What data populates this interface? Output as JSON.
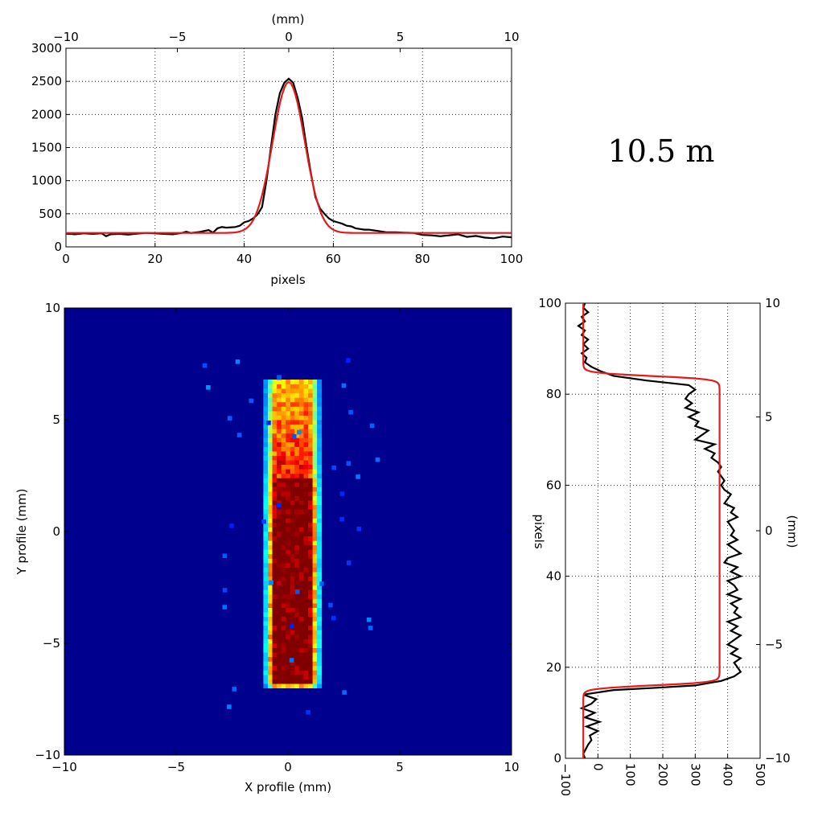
{
  "title_text": "10.5 m",
  "chart_data": [
    {
      "name": "x-profile",
      "type": "line",
      "xlabel": "pixels",
      "xlim": [
        0,
        100
      ],
      "ylim": [
        0,
        3000
      ],
      "xticks": [
        0,
        20,
        40,
        60,
        80,
        100
      ],
      "yticks": [
        0,
        500,
        1000,
        1500,
        2000,
        2500,
        3000
      ],
      "top_axis": {
        "label": "(mm)",
        "lim": [
          -10,
          10
        ],
        "ticks": [
          -10,
          -5,
          0,
          5,
          10
        ],
        "tick_labels": [
          "−10",
          "−5",
          "0",
          "5",
          "10"
        ]
      },
      "grid": true,
      "series": [
        {
          "name": "data",
          "color": "#000000",
          "points": [
            [
              0,
              200
            ],
            [
              2,
              190
            ],
            [
              4,
              205
            ],
            [
              6,
              195
            ],
            [
              8,
              205
            ],
            [
              9,
              160
            ],
            [
              10,
              190
            ],
            [
              12,
              195
            ],
            [
              14,
              185
            ],
            [
              16,
              200
            ],
            [
              18,
              210
            ],
            [
              20,
              205
            ],
            [
              22,
              195
            ],
            [
              24,
              190
            ],
            [
              26,
              210
            ],
            [
              27,
              230
            ],
            [
              28,
              210
            ],
            [
              30,
              225
            ],
            [
              32,
              255
            ],
            [
              33,
              215
            ],
            [
              34,
              280
            ],
            [
              35,
              300
            ],
            [
              36,
              290
            ],
            [
              38,
              300
            ],
            [
              39,
              320
            ],
            [
              40,
              370
            ],
            [
              41,
              390
            ],
            [
              42,
              430
            ],
            [
              43,
              490
            ],
            [
              44,
              600
            ],
            [
              45,
              1000
            ],
            [
              46,
              1500
            ],
            [
              47,
              2000
            ],
            [
              48,
              2320
            ],
            [
              49,
              2480
            ],
            [
              50,
              2540
            ],
            [
              51,
              2480
            ],
            [
              52,
              2250
            ],
            [
              53,
              1950
            ],
            [
              54,
              1500
            ],
            [
              55,
              1100
            ],
            [
              56,
              750
            ],
            [
              57,
              580
            ],
            [
              58,
              500
            ],
            [
              59,
              430
            ],
            [
              60,
              390
            ],
            [
              61,
              370
            ],
            [
              62,
              350
            ],
            [
              63,
              320
            ],
            [
              64,
              310
            ],
            [
              65,
              280
            ],
            [
              66,
              270
            ],
            [
              67,
              260
            ],
            [
              68,
              260
            ],
            [
              70,
              240
            ],
            [
              72,
              220
            ],
            [
              74,
              220
            ],
            [
              76,
              215
            ],
            [
              78,
              210
            ],
            [
              80,
              180
            ],
            [
              82,
              175
            ],
            [
              84,
              160
            ],
            [
              86,
              175
            ],
            [
              88,
              190
            ],
            [
              90,
              150
            ],
            [
              92,
              165
            ],
            [
              94,
              140
            ],
            [
              96,
              130
            ],
            [
              98,
              155
            ],
            [
              100,
              145
            ]
          ]
        },
        {
          "name": "fit",
          "color": "#e41a1c",
          "points": "gaussian",
          "baseline": 210,
          "amplitude": 2280,
          "center": 50,
          "sigma": 3.6
        }
      ]
    },
    {
      "name": "beam-image",
      "type": "heatmap",
      "xlabel": "X profile (mm)",
      "ylabel": "Y profile (mm)",
      "xlim": [
        -10,
        10
      ],
      "ylim": [
        -10,
        10
      ],
      "xticks": [
        -10,
        -5,
        0,
        5,
        10
      ],
      "yticks": [
        -10,
        -5,
        0,
        5,
        10
      ],
      "tick_labels": [
        "−10",
        "−5",
        "0",
        "5",
        "10"
      ],
      "colormap": "jet",
      "background": "#00008f",
      "beam": {
        "x_range_mm": [
          -1.1,
          1.4
        ],
        "y_range_mm": [
          -6.8,
          6.7
        ],
        "core_x_mm": [
          -0.5,
          0.9
        ]
      }
    },
    {
      "name": "y-profile",
      "type": "line",
      "ylabel": "pixels",
      "xlim": [
        -100,
        500
      ],
      "ylim": [
        0,
        100
      ],
      "xticks": [
        -100,
        0,
        100,
        200,
        300,
        400,
        500
      ],
      "xtick_labels": [
        "−100",
        "0",
        "100",
        "200",
        "300",
        "400",
        "500"
      ],
      "yticks": [
        0,
        20,
        40,
        60,
        80,
        100
      ],
      "right_axis": {
        "label": "(mm)",
        "lim": [
          -10,
          10
        ],
        "ticks": [
          -10,
          -5,
          0,
          5,
          10
        ],
        "tick_labels": [
          "−10",
          "−5",
          "0",
          "5",
          "10"
        ]
      },
      "grid": true,
      "series": [
        {
          "name": "data",
          "color": "#000000",
          "points": [
            [
              -40,
              0
            ],
            [
              -45,
              1
            ],
            [
              -30,
              3
            ],
            [
              -20,
              4
            ],
            [
              -25,
              5
            ],
            [
              0,
              6
            ],
            [
              -35,
              7
            ],
            [
              5,
              8
            ],
            [
              -40,
              9
            ],
            [
              -10,
              10
            ],
            [
              -50,
              11
            ],
            [
              -20,
              12
            ],
            [
              -5,
              13
            ],
            [
              -45,
              14
            ],
            [
              50,
              15
            ],
            [
              180,
              15.5
            ],
            [
              300,
              16
            ],
            [
              380,
              17
            ],
            [
              420,
              18
            ],
            [
              440,
              19
            ],
            [
              430,
              20
            ],
            [
              420,
              21
            ],
            [
              440,
              22
            ],
            [
              410,
              23
            ],
            [
              430,
              24
            ],
            [
              400,
              25
            ],
            [
              420,
              26
            ],
            [
              440,
              27
            ],
            [
              410,
              28
            ],
            [
              430,
              29
            ],
            [
              400,
              30
            ],
            [
              440,
              31
            ],
            [
              420,
              32
            ],
            [
              430,
              33
            ],
            [
              410,
              34
            ],
            [
              440,
              35
            ],
            [
              400,
              36
            ],
            [
              430,
              37
            ],
            [
              420,
              38
            ],
            [
              400,
              39
            ],
            [
              440,
              40
            ],
            [
              410,
              41
            ],
            [
              430,
              42
            ],
            [
              390,
              43
            ],
            [
              400,
              44
            ],
            [
              440,
              45
            ],
            [
              420,
              46
            ],
            [
              400,
              47
            ],
            [
              430,
              48
            ],
            [
              410,
              49
            ],
            [
              420,
              50
            ],
            [
              410,
              51
            ],
            [
              400,
              52
            ],
            [
              430,
              53
            ],
            [
              410,
              54
            ],
            [
              420,
              55
            ],
            [
              390,
              56
            ],
            [
              400,
              57
            ],
            [
              410,
              58
            ],
            [
              390,
              59
            ],
            [
              380,
              60
            ],
            [
              390,
              61
            ],
            [
              380,
              62
            ],
            [
              370,
              63
            ],
            [
              380,
              64
            ],
            [
              370,
              65
            ],
            [
              350,
              66
            ],
            [
              360,
              67
            ],
            [
              330,
              68
            ],
            [
              360,
              69
            ],
            [
              300,
              70
            ],
            [
              320,
              71
            ],
            [
              340,
              72
            ],
            [
              300,
              73
            ],
            [
              310,
              74
            ],
            [
              280,
              75
            ],
            [
              310,
              76
            ],
            [
              270,
              77
            ],
            [
              290,
              78
            ],
            [
              270,
              79
            ],
            [
              280,
              80
            ],
            [
              300,
              81
            ],
            [
              280,
              82
            ],
            [
              150,
              83
            ],
            [
              50,
              84
            ],
            [
              10,
              85
            ],
            [
              -20,
              86
            ],
            [
              -40,
              87
            ],
            [
              -35,
              88
            ],
            [
              -50,
              89
            ],
            [
              -30,
              90
            ],
            [
              -45,
              91
            ],
            [
              -30,
              92
            ],
            [
              -50,
              93
            ],
            [
              -40,
              94
            ],
            [
              -60,
              95
            ],
            [
              -40,
              96
            ],
            [
              -50,
              97
            ],
            [
              -30,
              98
            ],
            [
              -45,
              99
            ],
            [
              -40,
              100
            ]
          ]
        },
        {
          "name": "fit",
          "color": "#e41a1c",
          "points": "plateau",
          "baseline": -45,
          "top": 375,
          "low_edge": 16,
          "high_edge": 84
        }
      ]
    }
  ]
}
